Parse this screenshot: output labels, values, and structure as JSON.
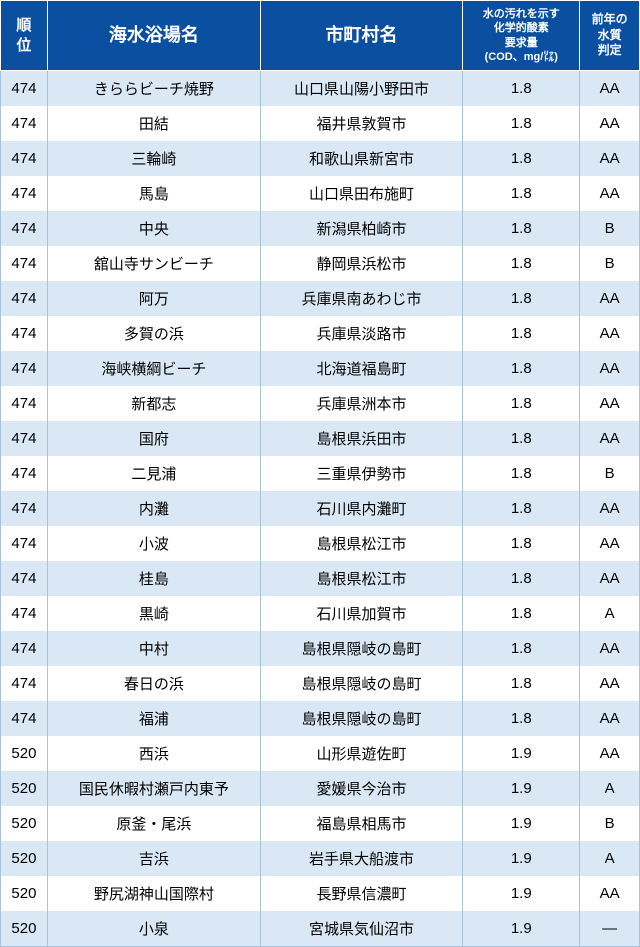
{
  "table": {
    "columns": [
      {
        "label": "順\n位",
        "class": "rank"
      },
      {
        "label": "海水浴場名",
        "class": "beach"
      },
      {
        "label": "市町村名",
        "class": "city"
      },
      {
        "label": "水の汚れを示す\n化学的酸素\n要求量\n(COD、mg/㍑)",
        "class": "cod"
      },
      {
        "label": "前年の\n水質\n判定",
        "class": "grade"
      }
    ],
    "rows": [
      [
        "474",
        "きららビーチ焼野",
        "山口県山陽小野田市",
        "1.8",
        "AA"
      ],
      [
        "474",
        "田結",
        "福井県敦賀市",
        "1.8",
        "AA"
      ],
      [
        "474",
        "三輪崎",
        "和歌山県新宮市",
        "1.8",
        "AA"
      ],
      [
        "474",
        "馬島",
        "山口県田布施町",
        "1.8",
        "AA"
      ],
      [
        "474",
        "中央",
        "新潟県柏崎市",
        "1.8",
        "B"
      ],
      [
        "474",
        "舘山寺サンビーチ",
        "静岡県浜松市",
        "1.8",
        "B"
      ],
      [
        "474",
        "阿万",
        "兵庫県南あわじ市",
        "1.8",
        "AA"
      ],
      [
        "474",
        "多賀の浜",
        "兵庫県淡路市",
        "1.8",
        "AA"
      ],
      [
        "474",
        "海峡横綱ビーチ",
        "北海道福島町",
        "1.8",
        "AA"
      ],
      [
        "474",
        "新都志",
        "兵庫県洲本市",
        "1.8",
        "AA"
      ],
      [
        "474",
        "国府",
        "島根県浜田市",
        "1.8",
        "AA"
      ],
      [
        "474",
        "二見浦",
        "三重県伊勢市",
        "1.8",
        "B"
      ],
      [
        "474",
        "内灘",
        "石川県内灘町",
        "1.8",
        "AA"
      ],
      [
        "474",
        "小波",
        "島根県松江市",
        "1.8",
        "AA"
      ],
      [
        "474",
        "桂島",
        "島根県松江市",
        "1.8",
        "AA"
      ],
      [
        "474",
        "黒崎",
        "石川県加賀市",
        "1.8",
        "A"
      ],
      [
        "474",
        "中村",
        "島根県隠岐の島町",
        "1.8",
        "AA"
      ],
      [
        "474",
        "春日の浜",
        "島根県隠岐の島町",
        "1.8",
        "AA"
      ],
      [
        "474",
        "福浦",
        "島根県隠岐の島町",
        "1.8",
        "AA"
      ],
      [
        "520",
        "西浜",
        "山形県遊佐町",
        "1.9",
        "AA"
      ],
      [
        "520",
        "国民休暇村瀬戸内東予",
        "愛媛県今治市",
        "1.9",
        "A"
      ],
      [
        "520",
        "原釜・尾浜",
        "福島県相馬市",
        "1.9",
        "B"
      ],
      [
        "520",
        "吉浜",
        "岩手県大船渡市",
        "1.9",
        "A"
      ],
      [
        "520",
        "野尻湖神山国際村",
        "長野県信濃町",
        "1.9",
        "AA"
      ],
      [
        "520",
        "小泉",
        "宮城県気仙沼市",
        "1.9",
        "―"
      ]
    ]
  }
}
